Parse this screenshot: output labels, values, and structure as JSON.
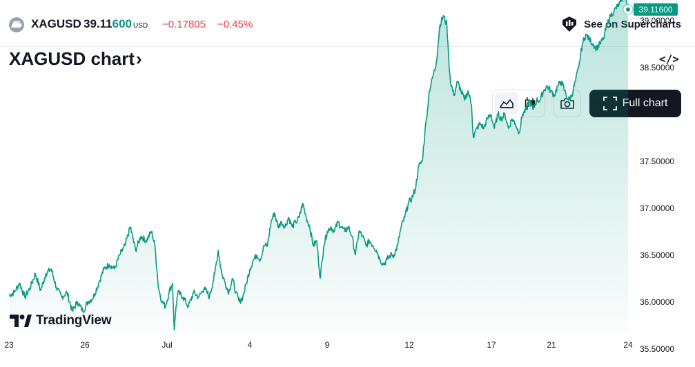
{
  "header": {
    "symbol": "XAGUSD",
    "price_main": "39.11",
    "price_highlight": "600",
    "price_unit": "USD",
    "change": "−0.17805",
    "change_pct": "−0.45%",
    "supercharts_label": "See on Supercharts"
  },
  "title": {
    "text": "XAGUSD chart",
    "chevron": "›"
  },
  "embed_icon": "</>",
  "toolbar": {
    "area_icon": "area-chart-icon",
    "candles_icon": "candlestick-icon",
    "snapshot_icon": "camera-icon",
    "full_chart_label": "Full chart"
  },
  "logo": {
    "text": "TradingView"
  },
  "colors": {
    "line": "#089981",
    "negative": "#f23645",
    "dark": "#131722"
  },
  "chart_data": {
    "type": "area",
    "x_tick_labels": [
      "23",
      "26",
      "Jul",
      "4",
      "9",
      "12",
      "17",
      "21",
      "24"
    ],
    "y_tick_labels": [
      "35.50000",
      "36.00000",
      "36.50000",
      "37.00000",
      "37.50000",
      "38.00000",
      "38.50000",
      "39.00000"
    ],
    "ylim": [
      35.25,
      39.6
    ],
    "last_value_label": "39.11600",
    "last_value": 39.116,
    "anchors": [
      [
        0,
        36.07
      ],
      [
        3,
        36.1
      ],
      [
        6,
        36.2
      ],
      [
        9,
        36.05
      ],
      [
        12,
        36.15
      ],
      [
        15,
        36.3
      ],
      [
        18,
        36.12
      ],
      [
        21,
        36.3
      ],
      [
        24,
        36.35
      ],
      [
        27,
        36.15
      ],
      [
        30,
        36.05
      ],
      [
        33,
        36.1
      ],
      [
        36,
        35.9
      ],
      [
        39,
        36.0
      ],
      [
        42,
        35.9
      ],
      [
        45,
        36.0
      ],
      [
        48,
        36.05
      ],
      [
        51,
        36.2
      ],
      [
        54,
        36.35
      ],
      [
        57,
        36.4
      ],
      [
        60,
        36.35
      ],
      [
        63,
        36.5
      ],
      [
        66,
        36.6
      ],
      [
        69,
        36.8
      ],
      [
        72,
        36.55
      ],
      [
        75,
        36.7
      ],
      [
        78,
        36.65
      ],
      [
        81,
        36.75
      ],
      [
        83,
        36.6
      ],
      [
        85,
        36.15
      ],
      [
        87,
        36.0
      ],
      [
        89,
        35.95
      ],
      [
        91,
        36.1
      ],
      [
        93,
        36.2
      ],
      [
        94,
        35.7
      ],
      [
        95,
        35.95
      ],
      [
        96,
        36.1
      ],
      [
        99,
        36.05
      ],
      [
        102,
        35.95
      ],
      [
        105,
        36.1
      ],
      [
        108,
        36.05
      ],
      [
        111,
        36.15
      ],
      [
        114,
        36.05
      ],
      [
        117,
        36.3
      ],
      [
        119,
        36.55
      ],
      [
        121,
        36.3
      ],
      [
        123,
        36.2
      ],
      [
        125,
        36.1
      ],
      [
        127,
        36.25
      ],
      [
        129,
        36.1
      ],
      [
        131,
        36.0
      ],
      [
        133,
        36.05
      ],
      [
        135,
        36.2
      ],
      [
        137,
        36.35
      ],
      [
        139,
        36.45
      ],
      [
        141,
        36.5
      ],
      [
        143,
        36.45
      ],
      [
        145,
        36.6
      ],
      [
        147,
        36.6
      ],
      [
        149,
        36.85
      ],
      [
        151,
        36.95
      ],
      [
        153,
        36.8
      ],
      [
        155,
        36.85
      ],
      [
        157,
        36.8
      ],
      [
        159,
        36.9
      ],
      [
        161,
        36.8
      ],
      [
        163,
        36.85
      ],
      [
        165,
        36.9
      ],
      [
        167,
        37.05
      ],
      [
        169,
        36.9
      ],
      [
        171,
        36.8
      ],
      [
        173,
        36.6
      ],
      [
        175,
        36.65
      ],
      [
        177,
        36.25
      ],
      [
        179,
        36.6
      ],
      [
        181,
        36.75
      ],
      [
        183,
        36.8
      ],
      [
        185,
        36.75
      ],
      [
        187,
        36.85
      ],
      [
        189,
        36.8
      ],
      [
        191,
        36.75
      ],
      [
        193,
        36.8
      ],
      [
        195,
        36.7
      ],
      [
        197,
        36.5
      ],
      [
        199,
        36.75
      ],
      [
        201,
        36.7
      ],
      [
        203,
        36.6
      ],
      [
        205,
        36.65
      ],
      [
        207,
        36.6
      ],
      [
        209,
        36.55
      ],
      [
        211,
        36.45
      ],
      [
        213,
        36.4
      ],
      [
        215,
        36.45
      ],
      [
        217,
        36.5
      ],
      [
        219,
        36.5
      ],
      [
        221,
        36.6
      ],
      [
        223,
        36.8
      ],
      [
        225,
        36.9
      ],
      [
        227,
        37.05
      ],
      [
        229,
        37.1
      ],
      [
        231,
        37.2
      ],
      [
        233,
        37.45
      ],
      [
        235,
        37.5
      ],
      [
        237,
        37.9
      ],
      [
        238,
        38.05
      ],
      [
        239,
        38.25
      ],
      [
        241,
        38.4
      ],
      [
        243,
        38.55
      ],
      [
        245,
        38.95
      ],
      [
        247,
        39.05
      ],
      [
        249,
        38.95
      ],
      [
        250,
        38.6
      ],
      [
        251,
        38.35
      ],
      [
        253,
        38.2
      ],
      [
        255,
        38.35
      ],
      [
        257,
        38.25
      ],
      [
        259,
        38.15
      ],
      [
        261,
        38.25
      ],
      [
        263,
        38.1
      ],
      [
        264,
        37.75
      ],
      [
        266,
        37.85
      ],
      [
        268,
        37.9
      ],
      [
        270,
        37.85
      ],
      [
        272,
        37.95
      ],
      [
        274,
        38.0
      ],
      [
        276,
        37.85
      ],
      [
        278,
        38.0
      ],
      [
        280,
        37.95
      ],
      [
        282,
        38.0
      ],
      [
        284,
        37.85
      ],
      [
        286,
        37.95
      ],
      [
        288,
        37.9
      ],
      [
        290,
        37.8
      ],
      [
        292,
        38.0
      ],
      [
        294,
        38.05
      ],
      [
        296,
        38.15
      ],
      [
        298,
        38.05
      ],
      [
        300,
        38.15
      ],
      [
        302,
        38.15
      ],
      [
        304,
        38.25
      ],
      [
        306,
        38.3
      ],
      [
        308,
        38.25
      ],
      [
        310,
        38.2
      ],
      [
        312,
        38.3
      ],
      [
        314,
        38.35
      ],
      [
        316,
        38.25
      ],
      [
        318,
        38.15
      ],
      [
        320,
        38.2
      ],
      [
        322,
        38.35
      ],
      [
        324,
        38.5
      ],
      [
        326,
        38.75
      ],
      [
        328,
        38.85
      ],
      [
        330,
        38.8
      ],
      [
        332,
        38.75
      ],
      [
        334,
        38.7
      ],
      [
        336,
        38.75
      ],
      [
        338,
        38.8
      ],
      [
        340,
        38.95
      ],
      [
        342,
        39.05
      ],
      [
        344,
        39.1
      ],
      [
        346,
        39.15
      ],
      [
        348,
        39.2
      ],
      [
        350,
        39.3
      ],
      [
        351,
        39.2
      ],
      [
        352,
        39.116
      ]
    ]
  }
}
